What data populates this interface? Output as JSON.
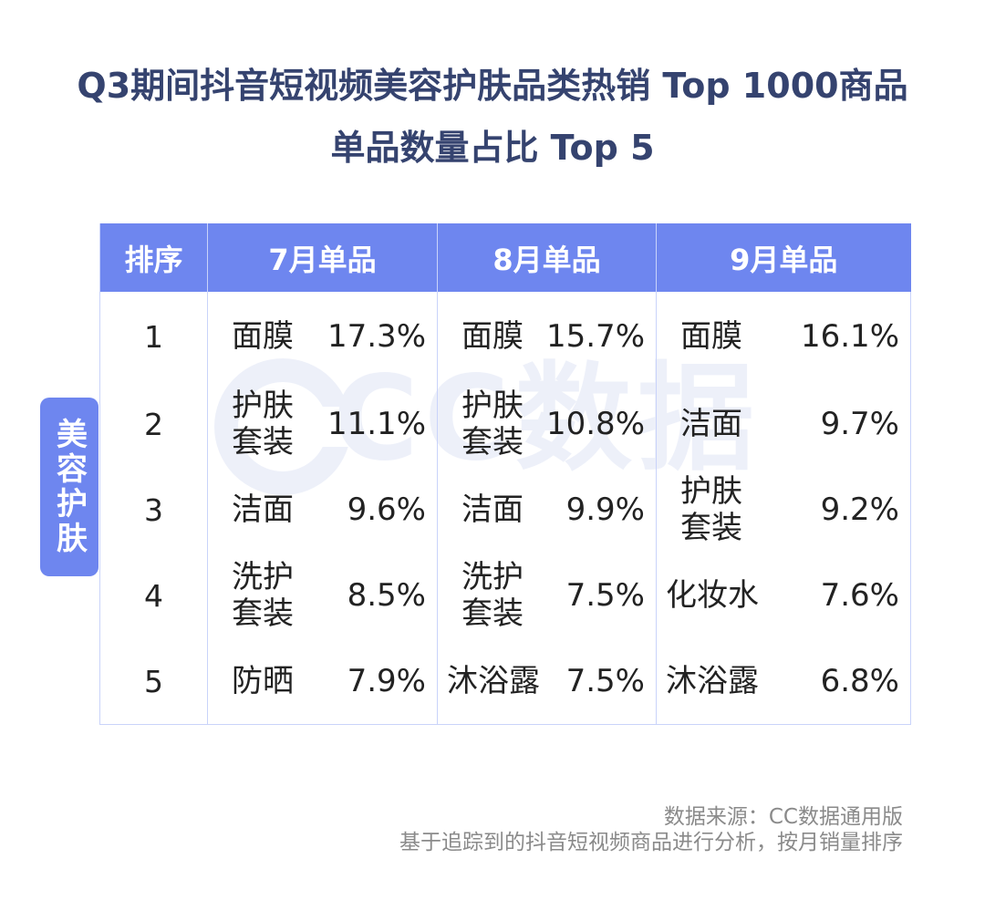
{
  "title": {
    "line1": "Q3期间抖音短视频美容护肤品类热销 Top 1000商品",
    "line2": "单品数量占比 Top 5"
  },
  "watermark": {
    "text": "CC数据"
  },
  "side_label": "美容护肤",
  "colors": {
    "header_bg": "#6e86ef",
    "title": "#35436f",
    "border": "#c9d3fa"
  },
  "chart_data": {
    "type": "table",
    "columns": [
      "排序",
      "7月单品",
      "8月单品",
      "9月单品"
    ],
    "rows": [
      {
        "rank": "1",
        "jul": {
          "product": "面膜",
          "share": "17.3%"
        },
        "aug": {
          "product": "面膜",
          "share": "15.7%"
        },
        "sep": {
          "product": "面膜",
          "share": "16.1%"
        }
      },
      {
        "rank": "2",
        "jul": {
          "product": "护肤套装",
          "share": "11.1%"
        },
        "aug": {
          "product": "护肤套装",
          "share": "10.8%"
        },
        "sep": {
          "product": "洁面",
          "share": "9.7%"
        }
      },
      {
        "rank": "3",
        "jul": {
          "product": "洁面",
          "share": "9.6%"
        },
        "aug": {
          "product": "洁面",
          "share": "9.9%"
        },
        "sep": {
          "product": "护肤套装",
          "share": "9.2%"
        }
      },
      {
        "rank": "4",
        "jul": {
          "product": "洗护套装",
          "share": "8.5%"
        },
        "aug": {
          "product": "洗护套装",
          "share": "7.5%"
        },
        "sep": {
          "product": "化妆水",
          "share": "7.6%"
        }
      },
      {
        "rank": "5",
        "jul": {
          "product": "防晒",
          "share": "7.9%"
        },
        "aug": {
          "product": "沐浴露",
          "share": "7.5%"
        },
        "sep": {
          "product": "沐浴露",
          "share": "6.8%"
        }
      }
    ]
  },
  "footer": {
    "source": "数据来源：CC数据通用版",
    "note": "基于追踪到的抖音短视频商品进行分析，按月销量排序"
  }
}
